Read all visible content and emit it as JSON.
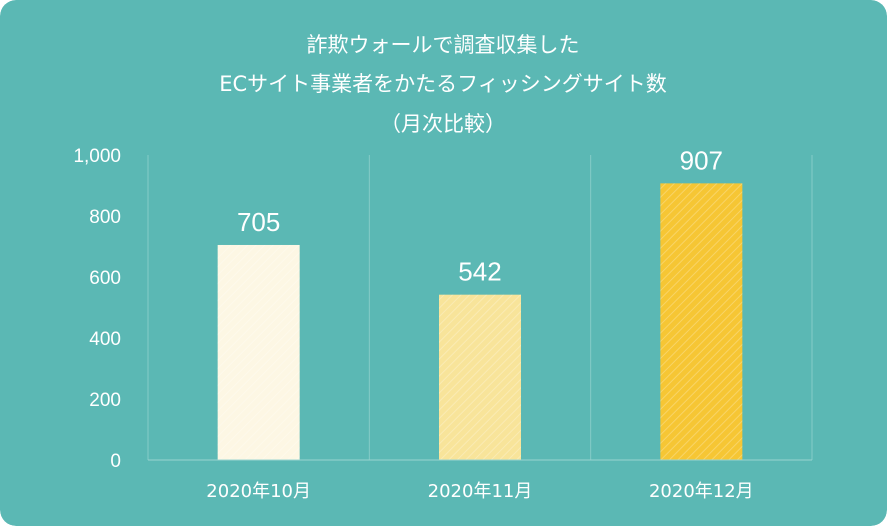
{
  "chart_data": {
    "type": "bar",
    "title_lines": [
      "詐欺ウォールで調査収集した",
      "ECサイト事業者をかたるフィッシングサイト数",
      "（月次比較）"
    ],
    "categories": [
      "2020年10月",
      "2020年11月",
      "2020年12月"
    ],
    "values": [
      705,
      542,
      907
    ],
    "data_labels": [
      "705",
      "542",
      "907"
    ],
    "ylim": [
      0,
      1000
    ],
    "yticks": [
      0,
      200,
      400,
      600,
      800,
      1000
    ],
    "ytick_labels": [
      "0",
      "200",
      "400",
      "600",
      "800",
      "1,000"
    ],
    "grid": "vertical",
    "xlabel": "",
    "ylabel": ""
  },
  "colors": {
    "background": "#5bb8b4",
    "grid": "#86cbc7",
    "axis": "#9ad4d0",
    "bars": [
      "#fdf7e4",
      "#f8e49a",
      "#f6c634"
    ],
    "text": "#ffffff"
  }
}
